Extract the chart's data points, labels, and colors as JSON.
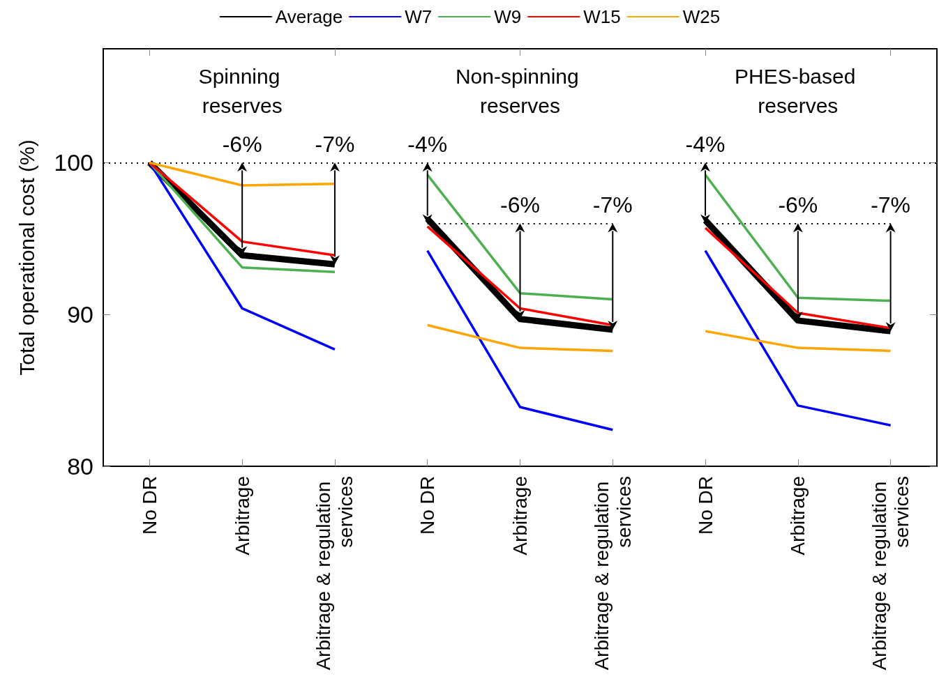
{
  "chart_data": {
    "type": "line",
    "categories": [
      "No DR",
      "Arbitrage",
      "Arbitrage & regulation services",
      "No DR",
      "Arbitrage",
      "Arbitrage & regulation services",
      "No DR",
      "Arbitrage",
      "Arbitrage & regulation services"
    ],
    "ylabel": "Total operational cost (%)",
    "ylim": [
      80,
      107.5
    ],
    "yticks": [
      80,
      90,
      100
    ],
    "grid": false,
    "legend": "top",
    "marker": "none",
    "series": [
      {
        "name": "Average",
        "color": "#000000",
        "values": [
          100,
          93.9,
          93.3,
          96.3,
          89.7,
          89.0,
          96.2,
          89.6,
          88.9
        ]
      },
      {
        "name": "W7",
        "color": "#0000ff",
        "values": [
          100,
          90.4,
          87.7,
          94.2,
          83.9,
          82.4,
          94.2,
          84.0,
          82.7
        ]
      },
      {
        "name": "W9",
        "color": "#4caf50",
        "values": [
          100,
          93.1,
          92.8,
          99.2,
          91.4,
          91.0,
          99.2,
          91.1,
          90.9
        ]
      },
      {
        "name": "W15",
        "color": "#ff0000",
        "values": [
          100,
          94.8,
          93.9,
          95.8,
          90.4,
          89.3,
          95.7,
          90.1,
          89.1
        ]
      },
      {
        "name": "W25",
        "color": "#ffa500",
        "values": [
          100,
          98.5,
          98.6,
          89.3,
          87.8,
          87.6,
          88.9,
          87.8,
          87.6
        ]
      }
    ],
    "ref_lines": [
      {
        "axis": "y",
        "value": 100,
        "line_style": "dotted"
      },
      {
        "axis": "y",
        "value": 96,
        "line_style": "dotted"
      }
    ],
    "annotations": [
      "Spinning reserves",
      "Non-spinning reserves",
      "PHES-based reserves",
      {
        "text": "-6%",
        "y": 100
      },
      {
        "text": "-7%",
        "y": 100
      },
      {
        "text": "-4%",
        "y": 100
      },
      {
        "text": "-6%",
        "y": 96
      },
      {
        "text": "-7%",
        "y": 96
      },
      {
        "text": "-4%",
        "y": 100
      },
      {
        "text": "-6%",
        "y": 96
      },
      {
        "text": "-7%",
        "y": 96
      }
    ]
  }
}
